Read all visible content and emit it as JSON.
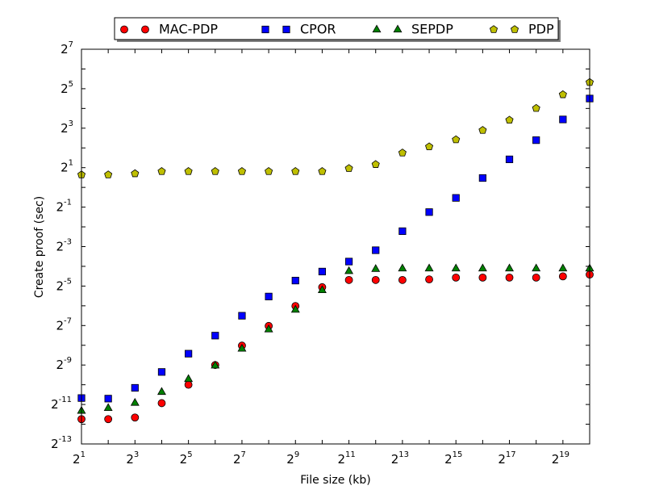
{
  "chart_data": {
    "type": "scatter",
    "title": "",
    "xlabel": "File size (kb)",
    "ylabel": "Create proof (sec)",
    "x_scale": "log2",
    "y_scale": "log2",
    "xlim": [
      2,
      1048576
    ],
    "ylim": [
      0.0001220703125,
      128
    ],
    "x_ticks": [
      {
        "base": "2",
        "exp": "1"
      },
      {
        "base": "2",
        "exp": "3"
      },
      {
        "base": "2",
        "exp": "5"
      },
      {
        "base": "2",
        "exp": "7"
      },
      {
        "base": "2",
        "exp": "9"
      },
      {
        "base": "2",
        "exp": "11"
      },
      {
        "base": "2",
        "exp": "13"
      },
      {
        "base": "2",
        "exp": "15"
      },
      {
        "base": "2",
        "exp": "17"
      },
      {
        "base": "2",
        "exp": "19"
      }
    ],
    "y_ticks": [
      {
        "base": "2",
        "exp": "-13"
      },
      {
        "base": "2",
        "exp": "-11"
      },
      {
        "base": "2",
        "exp": "-9"
      },
      {
        "base": "2",
        "exp": "-7"
      },
      {
        "base": "2",
        "exp": "-5"
      },
      {
        "base": "2",
        "exp": "-3"
      },
      {
        "base": "2",
        "exp": "-1"
      },
      {
        "base": "2",
        "exp": "1"
      },
      {
        "base": "2",
        "exp": "3"
      },
      {
        "base": "2",
        "exp": "5"
      },
      {
        "base": "2",
        "exp": "7"
      }
    ],
    "x": [
      2,
      4,
      8,
      16,
      32,
      64,
      128,
      256,
      512,
      1024,
      2048,
      4096,
      8192,
      16384,
      32768,
      65536,
      131072,
      262144,
      524288,
      1048576
    ],
    "grid": false,
    "legend_position": "top-center",
    "series": [
      {
        "name": "MAC-PDP",
        "marker": "circle",
        "color": "#ff0000",
        "values": [
          0.000292,
          0.000292,
          0.000309,
          0.000512,
          0.000978,
          0.001952,
          0.003857,
          0.007697,
          0.01552,
          0.03003,
          0.03872,
          0.03872,
          0.03872,
          0.03953,
          0.04211,
          0.04211,
          0.04211,
          0.04211,
          0.04397,
          0.04676
        ]
      },
      {
        "name": "CPOR",
        "marker": "square",
        "color": "#0000ff",
        "values": [
          0.000612,
          0.0006,
          0.000876,
          0.00153,
          0.002908,
          0.005486,
          0.01102,
          0.02164,
          0.03791,
          0.05202,
          0.0739,
          0.11,
          0.2148,
          0.42,
          0.6914,
          1.39,
          2.677,
          5.252,
          10.87,
          22.67
        ]
      },
      {
        "name": "SEPDP",
        "marker": "triangle",
        "color": "#008000",
        "values": [
          0.000392,
          0.000432,
          0.000519,
          0.000761,
          0.001194,
          0.001921,
          0.003472,
          0.006831,
          0.01365,
          0.02711,
          0.05303,
          0.05711,
          0.05816,
          0.05816,
          0.05816,
          0.05816,
          0.05816,
          0.05816,
          0.05816,
          0.05816
        ]
      },
      {
        "name": "PDP",
        "marker": "pentagon",
        "color": "#bfbf00",
        "values": [
          1.559,
          1.559,
          1.624,
          1.754,
          1.754,
          1.754,
          1.754,
          1.754,
          1.754,
          1.754,
          1.949,
          2.24,
          3.361,
          4.173,
          5.345,
          7.44,
          10.64,
          16.11,
          26.02,
          40.0
        ]
      }
    ]
  }
}
